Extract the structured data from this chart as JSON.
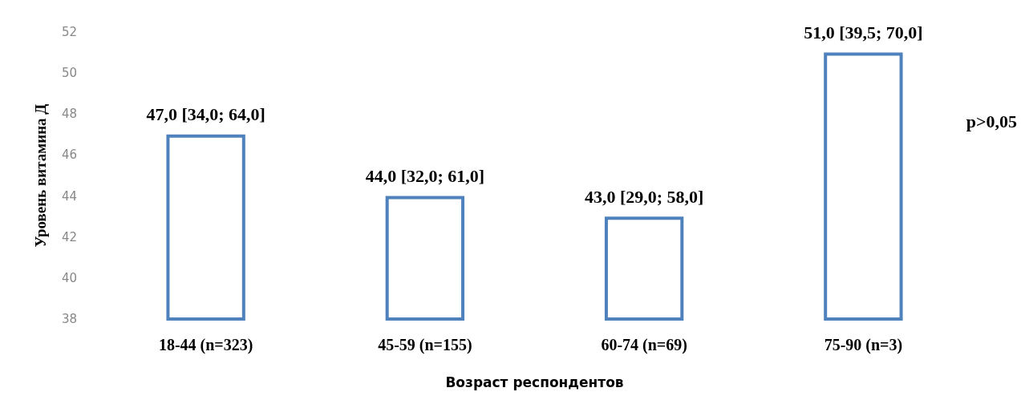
{
  "chart_data": {
    "type": "bar",
    "xlabel": "Возраст респондентов",
    "ylabel": "Уровень витамина Д",
    "categories": [
      "18-44 (n=323)",
      "45-59 (n=155)",
      "60-74 (n=69)",
      "75-90 (n=3)"
    ],
    "values": [
      47.0,
      44.0,
      43.0,
      51.0
    ],
    "value_labels": [
      "47,0 [34,0; 64,0]",
      "44,0 [32,0; 61,0]",
      "43,0 [29,0; 58,0]",
      "51,0 [39,5; 70,0]"
    ],
    "color": "#4f81bd",
    "ylim": [
      38,
      52
    ],
    "yticks": [
      38,
      40,
      42,
      44,
      46,
      48,
      50,
      52
    ],
    "grid": false,
    "annotations": [
      "p>0,05"
    ]
  }
}
